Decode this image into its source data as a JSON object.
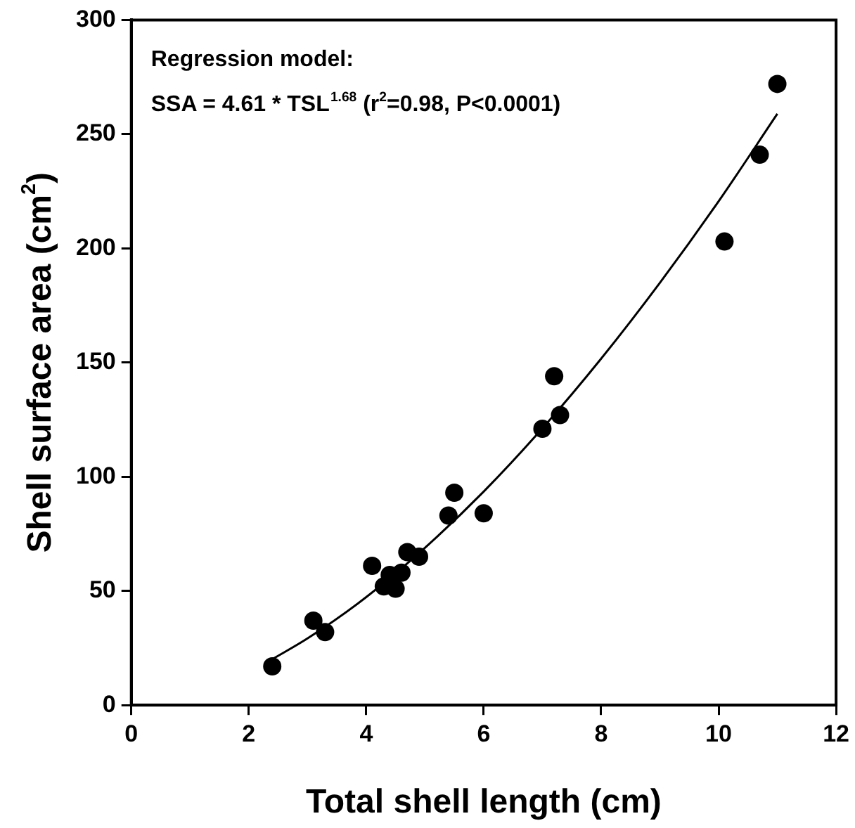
{
  "chart_data": {
    "type": "scatter",
    "xlabel": "Total shell length (cm)",
    "ylabel": "Shell surface area (cm$^{2}$)",
    "annotations": [
      "Regression model:",
      "SSA = 4.61 * TSL$^{1.68}$ (r$^{2}$=0.98, P<0.0001)"
    ],
    "series": [
      {
        "type": "scatter",
        "color": "#000000",
        "marker": "circle",
        "x": [
          2.4,
          3.1,
          3.3,
          4.1,
          4.3,
          4.4,
          4.5,
          4.6,
          4.7,
          4.9,
          5.4,
          5.5,
          6.0,
          7.0,
          7.2,
          7.3,
          10.1,
          10.7,
          11.0
        ],
        "values": [
          17,
          37,
          32,
          61,
          52,
          57,
          51,
          58,
          67,
          65,
          83,
          93,
          84,
          121,
          144,
          127,
          203,
          241,
          272
        ]
      },
      {
        "type": "line",
        "color": "#000000",
        "marker": "none",
        "line_style": "solid",
        "x": [
          2.4,
          3,
          4,
          5,
          6,
          7,
          8,
          9,
          10,
          11
        ],
        "values": [
          20.1,
          29.2,
          47.3,
          68.9,
          93.5,
          121.2,
          151.7,
          184.9,
          220.6,
          258.9
        ]
      }
    ],
    "xlim": [
      0,
      12
    ],
    "xticks": [
      0,
      2,
      4,
      6,
      8,
      10,
      12
    ],
    "ylim": [
      0,
      300
    ],
    "yticks": [
      0,
      50,
      100,
      150,
      200,
      250,
      300
    ],
    "grid": false,
    "legend": false
  }
}
